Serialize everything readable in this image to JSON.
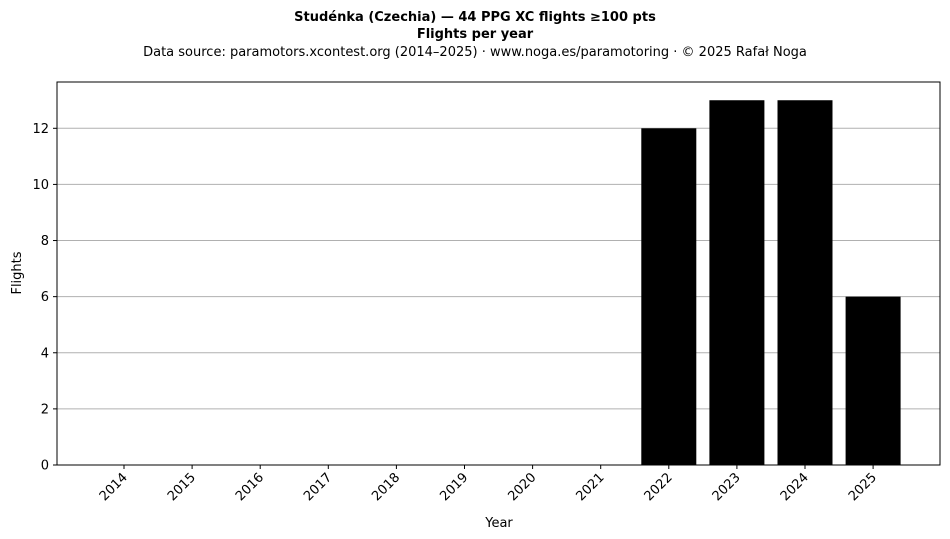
{
  "chart_data": {
    "type": "bar",
    "title": "Studénka (Czechia)  —  44 PPG XC flights ≥100 pts",
    "title_line2": "Flights per year",
    "subtitle": "Data source: paramotors.xcontest.org (2014–2025)  ·  www.noga.es/paramotoring  ·  © 2025 Rafał Noga",
    "xlabel": "Year",
    "ylabel": "Flights",
    "categories": [
      "2014",
      "2015",
      "2016",
      "2017",
      "2018",
      "2019",
      "2020",
      "2021",
      "2022",
      "2023",
      "2024",
      "2025"
    ],
    "values": [
      0,
      0,
      0,
      0,
      0,
      0,
      0,
      0,
      12,
      13,
      13,
      6
    ],
    "ylim": [
      0,
      13.65
    ],
    "yticks": [
      0,
      2,
      4,
      6,
      8,
      10,
      12
    ],
    "grid": "y",
    "bar_color": "#000000",
    "grid_color": "#b0b0b0"
  }
}
